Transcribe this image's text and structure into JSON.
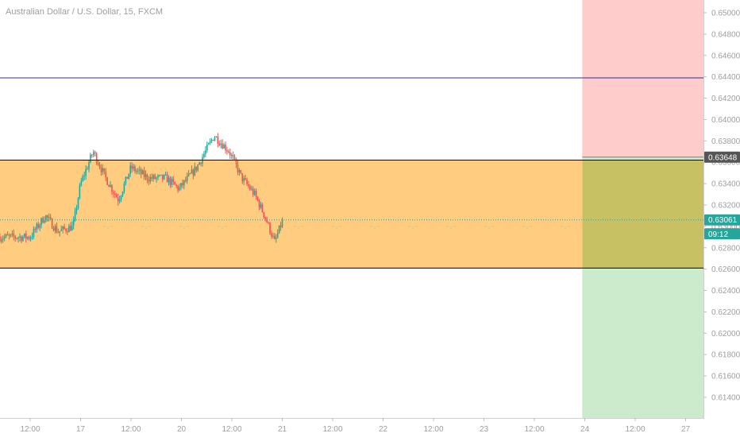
{
  "header": {
    "title": "Australian Dollar / U.S. Dollar, 15, FXCM"
  },
  "price_axis": {
    "ticks": [
      "0.65000",
      "0.64800",
      "0.64600",
      "0.64400",
      "0.64200",
      "0.64000",
      "0.63800",
      "0.63600",
      "0.63400",
      "0.63200",
      "0.63000",
      "0.62800",
      "0.62600",
      "0.62400",
      "0.62200",
      "0.62000",
      "0.61800",
      "0.61600",
      "0.61400"
    ],
    "labels": [
      {
        "text": "0.63648",
        "value": 0.63648,
        "bg": "#555555",
        "fg": "#ffffff"
      },
      {
        "text": "0.63061",
        "value": 0.63061,
        "bg": "#26a69a",
        "fg": "#ffffff"
      },
      {
        "text": "09:12",
        "value": 0.6293,
        "bg": "#26a69a",
        "fg": "#ffffff"
      }
    ]
  },
  "time_axis": {
    "ticks": [
      "12:00",
      "17",
      "12:00",
      "20",
      "12:00",
      "21",
      "12:00",
      "22",
      "12:00",
      "23",
      "12:00",
      "24",
      "12:00",
      "27"
    ]
  },
  "chart_data": {
    "type": "candlestick",
    "title": "Australian Dollar / U.S. Dollar, 15, FXCM",
    "symbol": "AUD/USD",
    "interval": "15",
    "source": "FXCM",
    "ylim": [
      0.6125,
      0.6515
    ],
    "y_ticks": [
      0.65,
      0.648,
      0.646,
      0.644,
      0.642,
      0.64,
      0.638,
      0.636,
      0.634,
      0.632,
      0.63,
      0.628,
      0.626,
      0.624,
      0.622,
      0.62,
      0.618,
      0.616,
      0.614
    ],
    "x_ticks": [
      "12:00",
      "17",
      "12:00",
      "20",
      "12:00",
      "21",
      "12:00",
      "22",
      "12:00",
      "23",
      "12:00",
      "24",
      "12:00",
      "27"
    ],
    "current_price": 0.63061,
    "countdown": "09:12",
    "price_path": [
      {
        "x": 0.0,
        "y": 0.629
      },
      {
        "x": 0.3,
        "y": 0.631
      },
      {
        "x": 0.55,
        "y": 0.6295
      },
      {
        "x": 0.85,
        "y": 0.63
      },
      {
        "x": 1.0,
        "y": 0.634
      },
      {
        "x": 1.25,
        "y": 0.637
      },
      {
        "x": 1.5,
        "y": 0.6345
      },
      {
        "x": 1.75,
        "y": 0.6325
      },
      {
        "x": 2.0,
        "y": 0.6355
      },
      {
        "x": 2.35,
        "y": 0.6345
      },
      {
        "x": 2.7,
        "y": 0.6345
      },
      {
        "x": 2.95,
        "y": 0.6335
      },
      {
        "x": 3.3,
        "y": 0.6355
      },
      {
        "x": 3.65,
        "y": 0.6385
      },
      {
        "x": 3.95,
        "y": 0.637
      },
      {
        "x": 4.2,
        "y": 0.6345
      },
      {
        "x": 4.45,
        "y": 0.633
      },
      {
        "x": 4.65,
        "y": 0.631
      },
      {
        "x": 4.85,
        "y": 0.6285
      },
      {
        "x": 5.0,
        "y": 0.6305
      }
    ],
    "horizontal_lines": [
      {
        "price": 0.6439,
        "color": "#2d2fa8"
      },
      {
        "price": 0.6362,
        "color": "#000000"
      },
      {
        "price": 0.6261,
        "color": "#000000"
      },
      {
        "price": 0.63061,
        "color": "#26a69a",
        "dotted": true
      }
    ],
    "zone": {
      "price_top": 0.6362,
      "price_bottom": 0.6261,
      "color": "#ffcc80"
    },
    "position_tool": {
      "entry": 0.63648,
      "stop": 0.6515,
      "target": 0.6125,
      "start_x": 10.95,
      "stop_color": "#ffcccc",
      "target_color": "#cceacc",
      "overlap_color": "#c7c163"
    }
  }
}
